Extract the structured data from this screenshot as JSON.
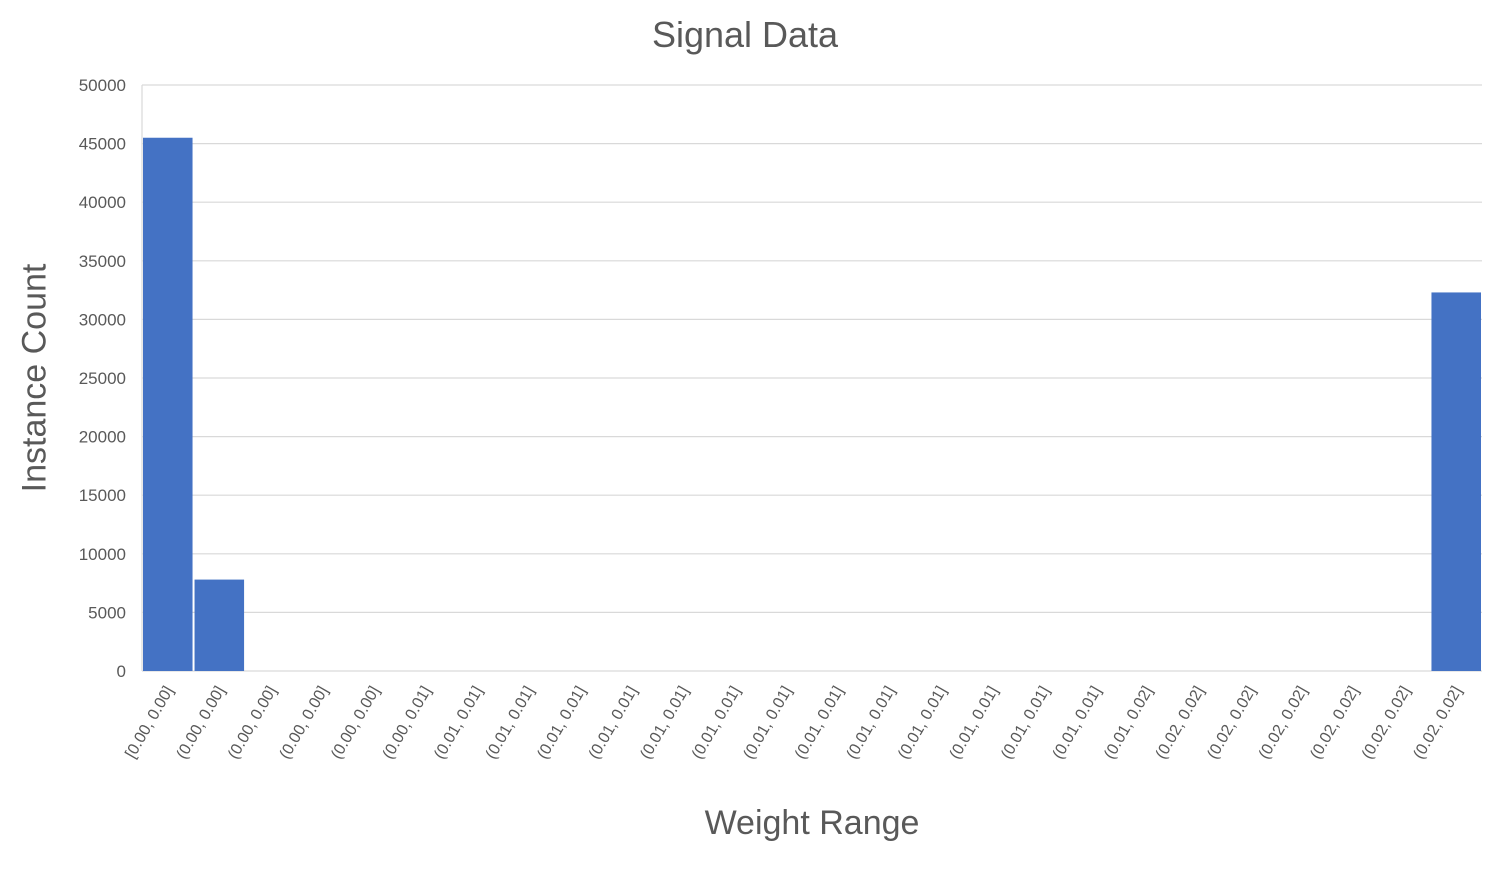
{
  "chart_data": {
    "type": "bar",
    "title": "Signal Data",
    "xlabel": "Weight Range",
    "ylabel": "Instance Count",
    "ylim": [
      0,
      50000
    ],
    "yticks": [
      0,
      5000,
      10000,
      15000,
      20000,
      25000,
      30000,
      35000,
      40000,
      45000,
      50000
    ],
    "grid": true,
    "bar_color": "#4472C4",
    "categories": [
      "[0.00, 0.00]",
      "(0.00, 0.00]",
      "(0.00, 0.00]",
      "(0.00, 0.00]",
      "(0.00, 0.00]",
      "(0.00, 0.01]",
      "(0.01, 0.01]",
      "(0.01, 0.01]",
      "(0.01, 0.01]",
      "(0.01, 0.01]",
      "(0.01, 0.01]",
      "(0.01, 0.01]",
      "(0.01, 0.01]",
      "(0.01, 0.01]",
      "(0.01, 0.01]",
      "(0.01, 0.01]",
      "(0.01, 0.01]",
      "(0.01, 0.01]",
      "(0.01, 0.01]",
      "(0.01, 0.02]",
      "(0.02, 0.02]",
      "(0.02, 0.02]",
      "(0.02, 0.02]",
      "(0.02, 0.02]",
      "(0.02, 0.02]",
      "(0.02, 0.02]"
    ],
    "values": [
      45500,
      7800,
      0,
      0,
      0,
      0,
      0,
      0,
      0,
      0,
      0,
      0,
      0,
      0,
      0,
      0,
      0,
      0,
      0,
      0,
      0,
      0,
      0,
      0,
      0,
      32300
    ]
  }
}
